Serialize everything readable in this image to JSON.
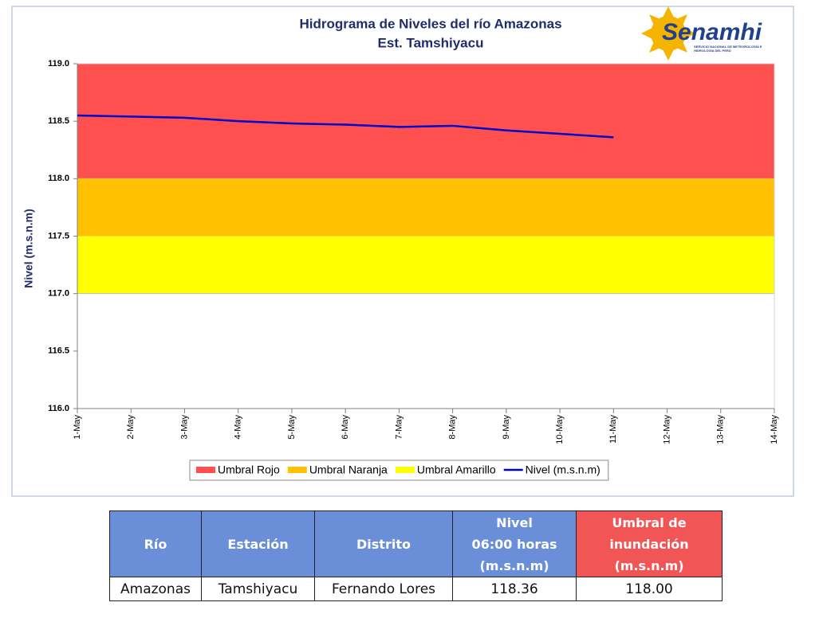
{
  "chart_data": {
    "type": "line",
    "title": "Hidrograma de Niveles del río Amazonas",
    "subtitle": "Est. Tamshiyacu",
    "ylabel": "Nivel (m.s.n.m)",
    "categories": [
      "1-May",
      "2-May",
      "3-May",
      "4-May",
      "5-May",
      "6-May",
      "7-May",
      "8-May",
      "9-May",
      "10-May",
      "11-May",
      "12-May",
      "13-May",
      "14-May"
    ],
    "series": [
      {
        "name": "Umbral Rojo",
        "color": "#ff5050",
        "kind": "band",
        "level": 118
      },
      {
        "name": "Umbral Naranja",
        "color": "#ffc000",
        "kind": "band",
        "level": 117.5
      },
      {
        "name": "Umbral Amarillo",
        "color": "#ffff00",
        "kind": "band",
        "level": 117
      },
      {
        "name": "Nivel (m.s.n.m)",
        "color": "#0000cc",
        "kind": "line",
        "values": [
          118.55,
          118.54,
          118.53,
          118.5,
          118.48,
          118.47,
          118.45,
          118.46,
          118.42,
          118.39,
          118.36,
          null,
          null,
          null
        ]
      }
    ],
    "ylim": [
      116,
      119
    ],
    "yticks": [
      {
        "value": 116,
        "label": "116.0"
      },
      {
        "value": 116.5,
        "label": "116.5"
      },
      {
        "value": 117,
        "label": "117.0"
      },
      {
        "value": 117.5,
        "label": "117.5"
      },
      {
        "value": 118,
        "label": "118.0"
      },
      {
        "value": 118.5,
        "label": "118.5"
      },
      {
        "value": 119,
        "label": "119.0"
      }
    ],
    "grid": false,
    "legend": "bottom"
  },
  "logo": {
    "name": "Senamhi",
    "tagline": "SERVICIO NACIONAL DE METEOROLOGÍA E HIDROLOGÍA DEL PERÚ"
  },
  "table": {
    "header": [
      "Río",
      "Estación",
      "Distrito",
      "Nivel\n06:00 horas\n(m.s.n.m)",
      "Umbral de\ninundación\n(m.s.n.m)"
    ],
    "rows": [
      [
        "Amazonas",
        "Tamshiyacu",
        "Fernando Lores",
        "118.36",
        "118.00"
      ]
    ]
  }
}
